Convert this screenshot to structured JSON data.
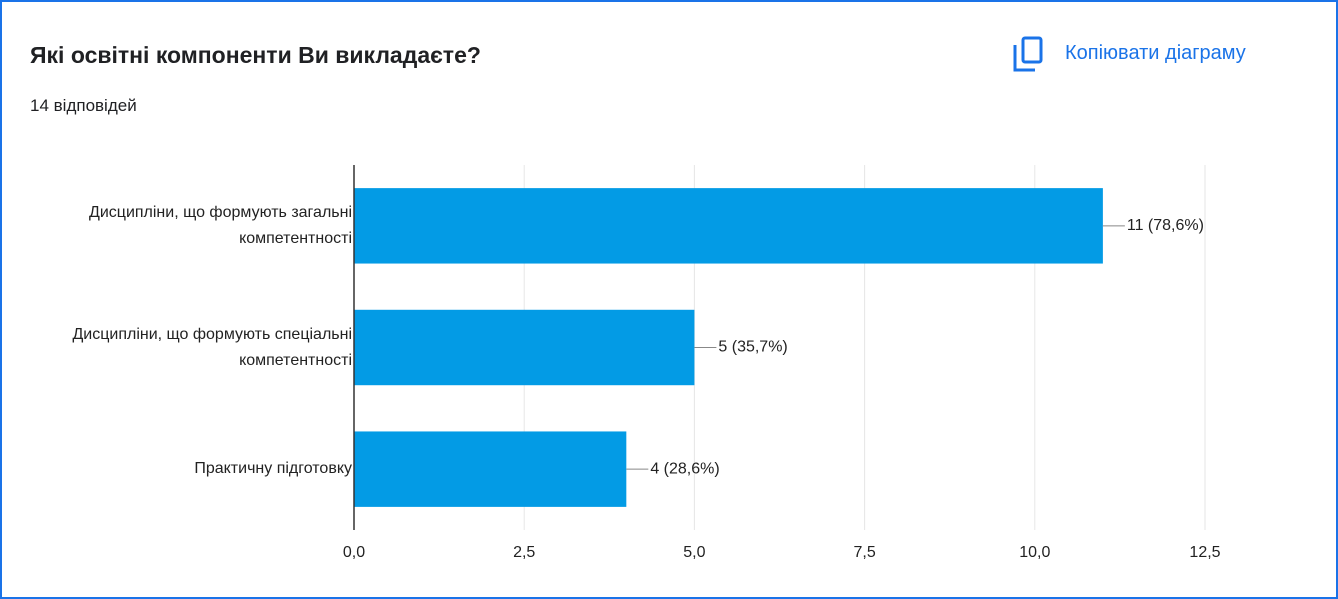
{
  "header": {
    "title": "Які освітні компоненти Ви викладаєте?",
    "subtitle": "14 відповідей",
    "copy_button": "Копіювати діаграму"
  },
  "chart_data": {
    "type": "hbar",
    "categories": [
      "Дисципліни, що формують загальні компетентності",
      "Дисципліни, що формують спеціальні компетентності",
      "Практичну підготовку"
    ],
    "values": [
      11,
      5,
      4
    ],
    "value_labels": [
      "11 (78,6%)",
      "5 (35,7%)",
      "4 (28,6%)"
    ],
    "color": "#039be5",
    "xlim": [
      0,
      12.5
    ],
    "xticks": [
      {
        "value": 0,
        "label": "0,0"
      },
      {
        "value": 2.5,
        "label": "2,5"
      },
      {
        "value": 5,
        "label": "5,0"
      },
      {
        "value": 7.5,
        "label": "7,5"
      },
      {
        "value": 10,
        "label": "10,0"
      },
      {
        "value": 12.5,
        "label": "12,5"
      }
    ],
    "grid": true
  }
}
